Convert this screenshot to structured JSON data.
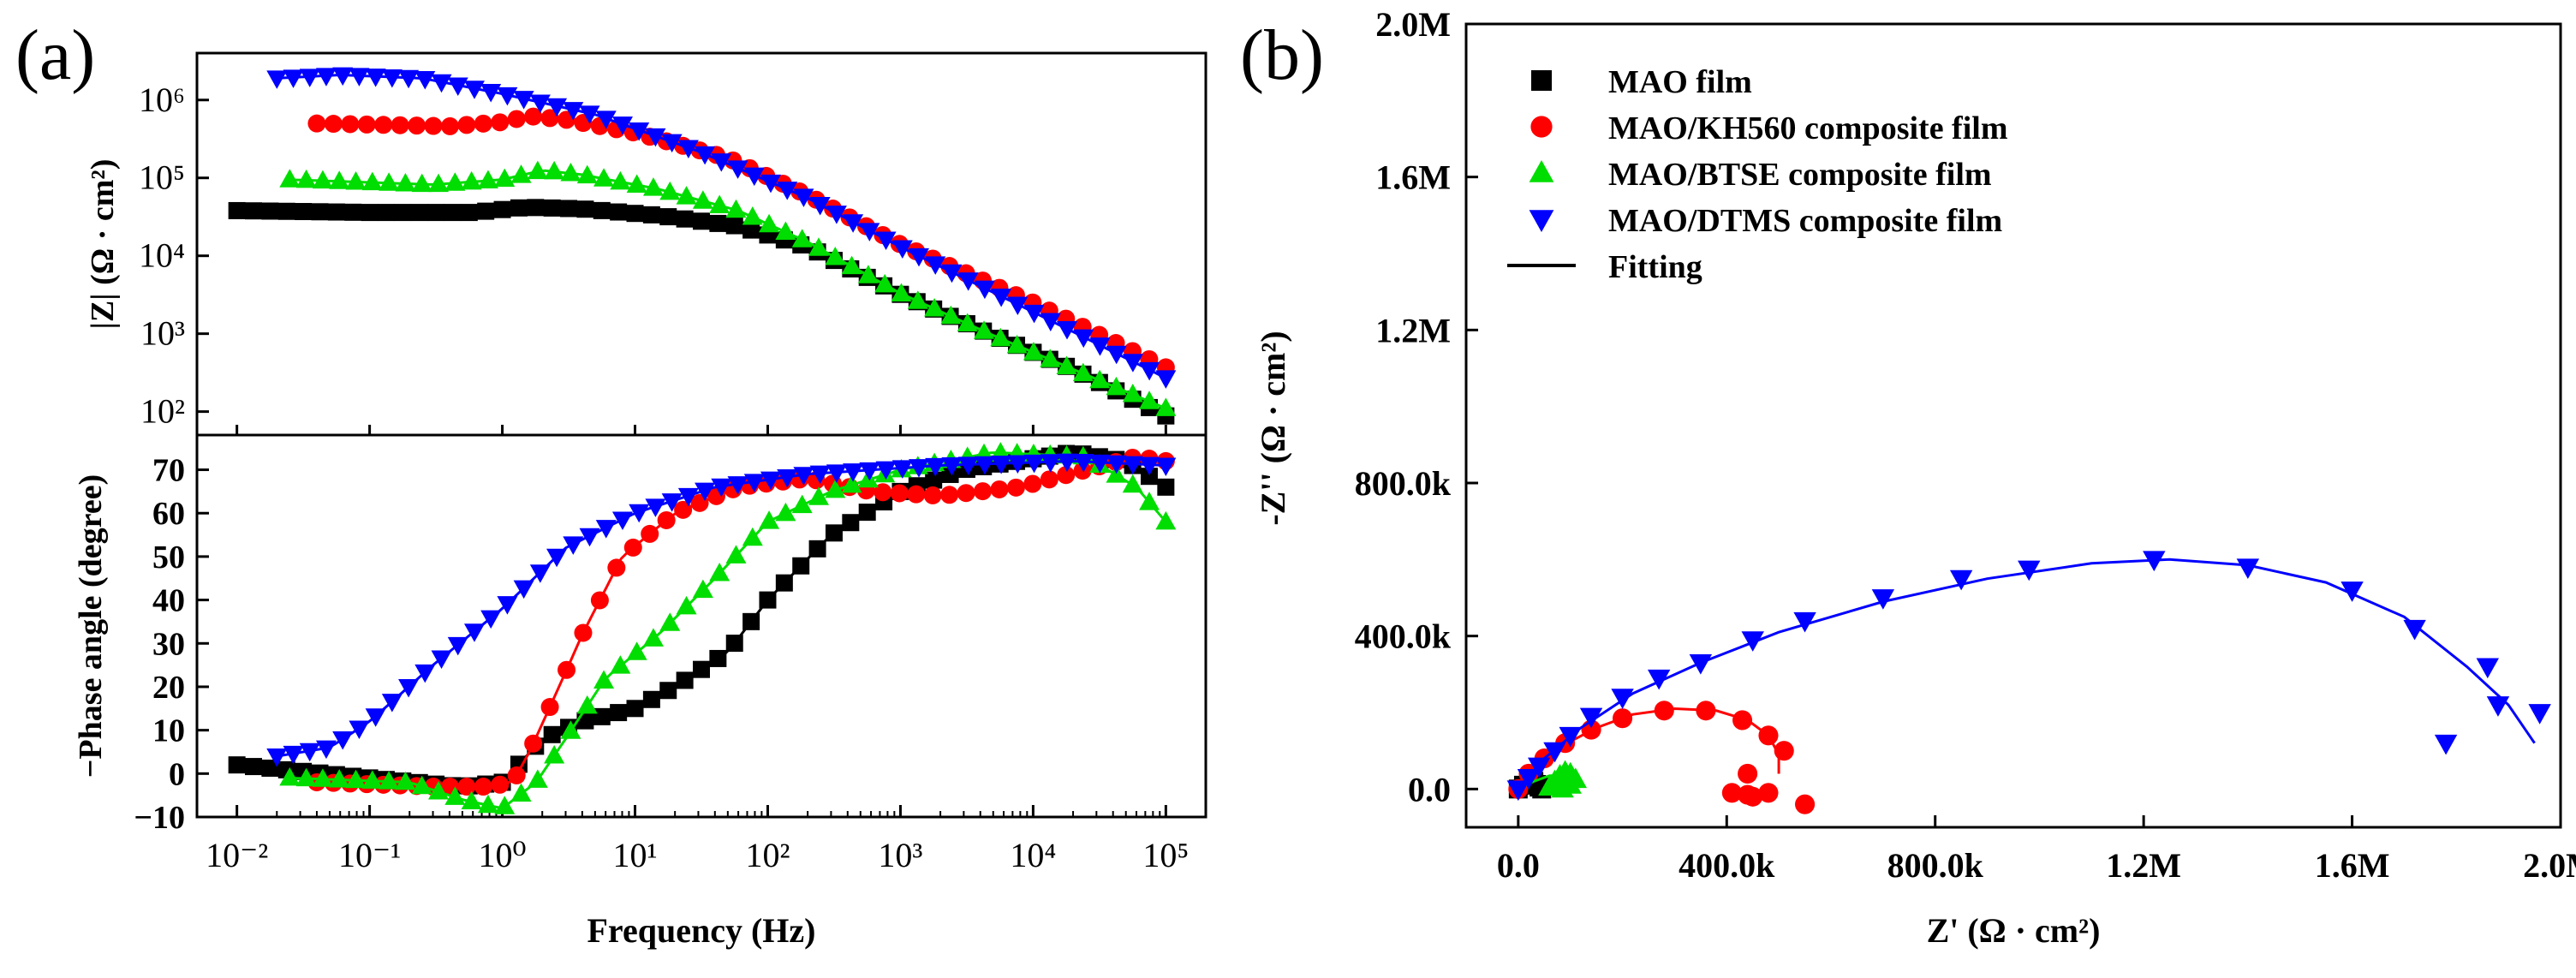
{
  "figure": {
    "panel_a_label": "(a)",
    "panel_b_label": "(b)"
  },
  "colors": {
    "MAO film": "#000000",
    "MAO/KH560 composite film": "#ff0000",
    "MAO/BTSE composite film": "#00dd00",
    "MAO/DTMS composite film": "#0000ff"
  },
  "chart_data": [
    {
      "id": "bode_modulus",
      "type": "scatter",
      "xscale": "log",
      "yscale": "log",
      "xlim": [
        0.005,
        200000
      ],
      "ylim": [
        50,
        4000000
      ],
      "xlabel": "Frequency (Hz)",
      "ylabel": "|Z| (Ω · cm²)",
      "x_ticks": [
        {
          "value": 0.01,
          "label": "10⁻²"
        },
        {
          "value": 0.1,
          "label": "10⁻¹"
        },
        {
          "value": 1,
          "label": "10⁰"
        },
        {
          "value": 10,
          "label": "10¹"
        },
        {
          "value": 100,
          "label": "10²"
        },
        {
          "value": 1000,
          "label": "10³"
        },
        {
          "value": 10000,
          "label": "10⁴"
        },
        {
          "value": 100000,
          "label": "10⁵"
        }
      ],
      "y_ticks": [
        {
          "value": 100,
          "label": "10²"
        },
        {
          "value": 1000,
          "label": "10³"
        },
        {
          "value": 10000,
          "label": "10⁴"
        },
        {
          "value": 100000,
          "label": "10⁵"
        },
        {
          "value": 1000000,
          "label": "10⁶"
        }
      ],
      "series": [
        {
          "name": "MAO film",
          "marker": "square",
          "x_range": [
            0.01,
            100000
          ],
          "points": [
            [
              0.01,
              38000
            ],
            [
              0.1,
              36000
            ],
            [
              0.6,
              36000
            ],
            [
              1.5,
              42000
            ],
            [
              4,
              40000
            ],
            [
              15,
              33000
            ],
            [
              60,
              24000
            ],
            [
              200,
              13000
            ],
            [
              1000,
              3200
            ],
            [
              5000,
              950
            ],
            [
              20000,
              350
            ],
            [
              100000,
              88
            ]
          ]
        },
        {
          "name": "MAO/KH560 composite film",
          "marker": "circle",
          "x_range": [
            0.04,
            100000
          ],
          "points": [
            [
              0.04,
              500000
            ],
            [
              0.4,
              460000
            ],
            [
              1,
              520000
            ],
            [
              1.6,
              620000
            ],
            [
              3,
              560000
            ],
            [
              10,
              380000
            ],
            [
              50,
              180000
            ],
            [
              200,
              60000
            ],
            [
              1000,
              14000
            ],
            [
              10000,
              2500
            ],
            [
              100000,
              370
            ]
          ]
        },
        {
          "name": "MAO/BTSE composite film",
          "marker": "triangle-up",
          "x_range": [
            0.025,
            100000
          ],
          "points": [
            [
              0.025,
              95000
            ],
            [
              0.3,
              82000
            ],
            [
              1,
              95000
            ],
            [
              2,
              125000
            ],
            [
              4,
              110000
            ],
            [
              15,
              72000
            ],
            [
              60,
              38000
            ],
            [
              200,
              15000
            ],
            [
              1000,
              3300
            ],
            [
              5000,
              950
            ],
            [
              20000,
              350
            ],
            [
              100000,
              110
            ]
          ]
        },
        {
          "name": "MAO/DTMS composite film",
          "marker": "triangle-down",
          "x_range": [
            0.02,
            100000
          ],
          "points": [
            [
              0.02,
              1900000
            ],
            [
              0.06,
              2100000
            ],
            [
              0.25,
              1900000
            ],
            [
              1,
              1200000
            ],
            [
              5,
              650000
            ],
            [
              30,
              220000
            ],
            [
              200,
              55000
            ],
            [
              1000,
              13000
            ],
            [
              10000,
              1900
            ],
            [
              100000,
              270
            ]
          ]
        }
      ]
    },
    {
      "id": "bode_phase",
      "type": "scatter",
      "xscale": "log",
      "xlim": [
        0.005,
        200000
      ],
      "ylim": [
        -10,
        78
      ],
      "xlabel": "Frequency (Hz)",
      "ylabel": "−Phase angle (degree)",
      "y_ticks": [
        -10,
        0,
        10,
        20,
        30,
        40,
        50,
        60,
        70
      ],
      "series": [
        {
          "name": "MAO film",
          "marker": "square",
          "x_range": [
            0.01,
            100000
          ],
          "points": [
            [
              0.01,
              2
            ],
            [
              0.1,
              -1
            ],
            [
              0.5,
              -3
            ],
            [
              1,
              -2
            ],
            [
              2,
              8
            ],
            [
              4,
              12
            ],
            [
              10,
              15
            ],
            [
              20,
              20
            ],
            [
              50,
              28
            ],
            [
              100,
              40
            ],
            [
              300,
              55
            ],
            [
              1000,
              65
            ],
            [
              3000,
              70
            ],
            [
              20000,
              74
            ],
            [
              50000,
              72
            ],
            [
              100000,
              66
            ]
          ]
        },
        {
          "name": "MAO/KH560 composite film",
          "marker": "circle",
          "x_range": [
            0.04,
            100000
          ],
          "points": [
            [
              0.04,
              -2
            ],
            [
              0.3,
              -3
            ],
            [
              0.8,
              -3
            ],
            [
              1.2,
              -2
            ],
            [
              1.6,
              5
            ],
            [
              2.5,
              18
            ],
            [
              4,
              32
            ],
            [
              8,
              50
            ],
            [
              20,
              60
            ],
            [
              60,
              66
            ],
            [
              200,
              68
            ],
            [
              600,
              65
            ],
            [
              2000,
              64
            ],
            [
              8000,
              66
            ],
            [
              25000,
              70
            ],
            [
              60000,
              73
            ],
            [
              100000,
              72
            ]
          ]
        },
        {
          "name": "MAO/BTSE composite film",
          "marker": "triangle-up",
          "x_range": [
            0.025,
            100000
          ],
          "points": [
            [
              0.025,
              -1
            ],
            [
              0.2,
              -2
            ],
            [
              0.5,
              -6
            ],
            [
              1,
              -8
            ],
            [
              1.8,
              -2
            ],
            [
              3,
              8
            ],
            [
              6,
              22
            ],
            [
              15,
              32
            ],
            [
              40,
              45
            ],
            [
              100,
              58
            ],
            [
              300,
              65
            ],
            [
              1000,
              70
            ],
            [
              5000,
              74
            ],
            [
              25000,
              73
            ],
            [
              60000,
              66
            ],
            [
              100000,
              58
            ]
          ]
        },
        {
          "name": "MAO/DTMS composite film",
          "marker": "triangle-down",
          "x_range": [
            0.02,
            100000
          ],
          "points": [
            [
              0.02,
              4
            ],
            [
              0.05,
              6
            ],
            [
              0.1,
              12
            ],
            [
              0.3,
              25
            ],
            [
              1,
              38
            ],
            [
              3,
              52
            ],
            [
              10,
              60
            ],
            [
              40,
              66
            ],
            [
              200,
              69
            ],
            [
              2000,
              71
            ],
            [
              20000,
              72
            ],
            [
              100000,
              71
            ]
          ]
        }
      ]
    },
    {
      "id": "nyquist",
      "type": "scatter",
      "xlim": [
        -0.1,
        2.0
      ],
      "ylim": [
        -0.1,
        2.0
      ],
      "xlabel": "Z' (Ω · cm²)",
      "ylabel": "-Z'' (Ω · cm²)",
      "units": "M Ω·cm²",
      "x_ticks": [
        {
          "value": 0.0,
          "label": "0.0"
        },
        {
          "value": 0.4,
          "label": "400.0k"
        },
        {
          "value": 0.8,
          "label": "800.0k"
        },
        {
          "value": 1.2,
          "label": "1.2M"
        },
        {
          "value": 1.6,
          "label": "1.6M"
        },
        {
          "value": 2.0,
          "label": "2.0M"
        }
      ],
      "y_ticks": [
        {
          "value": 0.0,
          "label": "0.0"
        },
        {
          "value": 0.4,
          "label": "400.0k"
        },
        {
          "value": 0.8,
          "label": "800.0k"
        },
        {
          "value": 1.2,
          "label": "1.2M"
        },
        {
          "value": 1.6,
          "label": "1.6M"
        },
        {
          "value": 2.0,
          "label": "2.0M"
        }
      ],
      "legend": {
        "position": "top-left",
        "entries": [
          {
            "label": "MAO film",
            "marker": "square"
          },
          {
            "label": "MAO/KH560 composite film",
            "marker": "circle"
          },
          {
            "label": "MAO/BTSE composite film",
            "marker": "triangle-up"
          },
          {
            "label": "MAO/DTMS composite film",
            "marker": "triangle-down"
          },
          {
            "label": "Fitting",
            "marker": "line"
          }
        ]
      },
      "series": [
        {
          "name": "MAO film",
          "marker": "square",
          "points": [
            [
              0.0,
              0.0
            ],
            [
              0.01,
              0.01
            ],
            [
              0.02,
              0.015
            ],
            [
              0.03,
              0.02
            ],
            [
              0.035,
              0.012
            ],
            [
              0.04,
              0.005
            ],
            [
              0.045,
              0.0
            ]
          ]
        },
        {
          "name": "MAO/KH560 composite film",
          "marker": "circle",
          "points": [
            [
              0.0,
              0.0
            ],
            [
              0.02,
              0.04
            ],
            [
              0.05,
              0.08
            ],
            [
              0.09,
              0.12
            ],
            [
              0.14,
              0.155
            ],
            [
              0.2,
              0.185
            ],
            [
              0.28,
              0.205
            ],
            [
              0.36,
              0.205
            ],
            [
              0.43,
              0.18
            ],
            [
              0.48,
              0.14
            ],
            [
              0.51,
              0.1
            ],
            [
              0.44,
              0.04
            ],
            [
              0.48,
              -0.01
            ],
            [
              0.45,
              -0.02
            ],
            [
              0.41,
              -0.01
            ],
            [
              0.44,
              -0.015
            ],
            [
              0.55,
              -0.04
            ]
          ],
          "fit": [
            [
              0.0,
              0.0
            ],
            [
              0.03,
              0.05
            ],
            [
              0.08,
              0.11
            ],
            [
              0.15,
              0.16
            ],
            [
              0.22,
              0.195
            ],
            [
              0.3,
              0.21
            ],
            [
              0.38,
              0.205
            ],
            [
              0.44,
              0.18
            ],
            [
              0.48,
              0.14
            ],
            [
              0.5,
              0.09
            ],
            [
              0.5,
              0.04
            ]
          ]
        },
        {
          "name": "MAO/BTSE composite film",
          "marker": "triangle-up",
          "points": [
            [
              0.06,
              0.005
            ],
            [
              0.07,
              0.02
            ],
            [
              0.08,
              0.035
            ],
            [
              0.09,
              0.045
            ],
            [
              0.1,
              0.04
            ],
            [
              0.11,
              0.025
            ],
            [
              0.1,
              0.01
            ],
            [
              0.085,
              0.0
            ],
            [
              0.095,
              0.015
            ]
          ],
          "fit": [
            [
              0.0,
              0.0
            ],
            [
              0.03,
              0.02
            ],
            [
              0.06,
              0.035
            ],
            [
              0.09,
              0.035
            ],
            [
              0.11,
              0.02
            ],
            [
              0.11,
              0.0
            ]
          ]
        },
        {
          "name": "MAO/DTMS composite film",
          "marker": "triangle-down",
          "points": [
            [
              0.0,
              0.0
            ],
            [
              0.02,
              0.03
            ],
            [
              0.04,
              0.06
            ],
            [
              0.07,
              0.1
            ],
            [
              0.1,
              0.14
            ],
            [
              0.14,
              0.19
            ],
            [
              0.2,
              0.24
            ],
            [
              0.27,
              0.29
            ],
            [
              0.35,
              0.33
            ],
            [
              0.45,
              0.39
            ],
            [
              0.55,
              0.44
            ],
            [
              0.7,
              0.5
            ],
            [
              0.85,
              0.55
            ],
            [
              0.98,
              0.575
            ],
            [
              1.22,
              0.6
            ],
            [
              1.4,
              0.58
            ],
            [
              1.6,
              0.52
            ],
            [
              1.72,
              0.42
            ],
            [
              1.78,
              0.12
            ],
            [
              1.86,
              0.32
            ],
            [
              1.88,
              0.22
            ],
            [
              1.96,
              0.2
            ]
          ],
          "fit": [
            [
              0.0,
              0.0
            ],
            [
              0.05,
              0.08
            ],
            [
              0.12,
              0.16
            ],
            [
              0.22,
              0.25
            ],
            [
              0.35,
              0.33
            ],
            [
              0.5,
              0.41
            ],
            [
              0.7,
              0.49
            ],
            [
              0.9,
              0.55
            ],
            [
              1.1,
              0.59
            ],
            [
              1.25,
              0.6
            ],
            [
              1.4,
              0.585
            ],
            [
              1.55,
              0.54
            ],
            [
              1.7,
              0.45
            ],
            [
              1.82,
              0.32
            ],
            [
              1.9,
              0.22
            ],
            [
              1.95,
              0.12
            ]
          ]
        }
      ]
    }
  ]
}
